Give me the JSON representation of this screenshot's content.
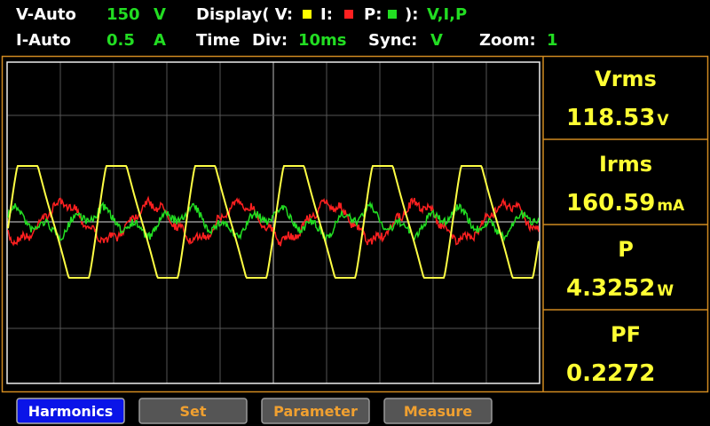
{
  "status": {
    "v_range": {
      "label": "V-Auto",
      "value": "150",
      "unit": "V"
    },
    "i_range": {
      "label": "I-Auto",
      "value": "0.5",
      "unit": "A"
    },
    "display": {
      "label": "Display( V:",
      "i_label": "I:",
      "p_label": "P:",
      "close": "):",
      "value": "V,I,P"
    },
    "time_div": {
      "label": "Time",
      "label2": "Div:",
      "value": "10ms"
    },
    "sync": {
      "label": "Sync:",
      "value": "V"
    },
    "zoom": {
      "label": "Zoom:",
      "value": "1"
    }
  },
  "readings": [
    {
      "name": "Vrms",
      "value": "118.53",
      "unit": "V"
    },
    {
      "name": "Irms",
      "value": "160.59",
      "unit": "mA"
    },
    {
      "name": "P",
      "value": "4.3252",
      "unit": "W"
    },
    {
      "name": "PF",
      "value": "0.2272"
    }
  ],
  "buttons": [
    "Harmonics",
    "Set",
    "Parameter",
    "Measure"
  ]
}
